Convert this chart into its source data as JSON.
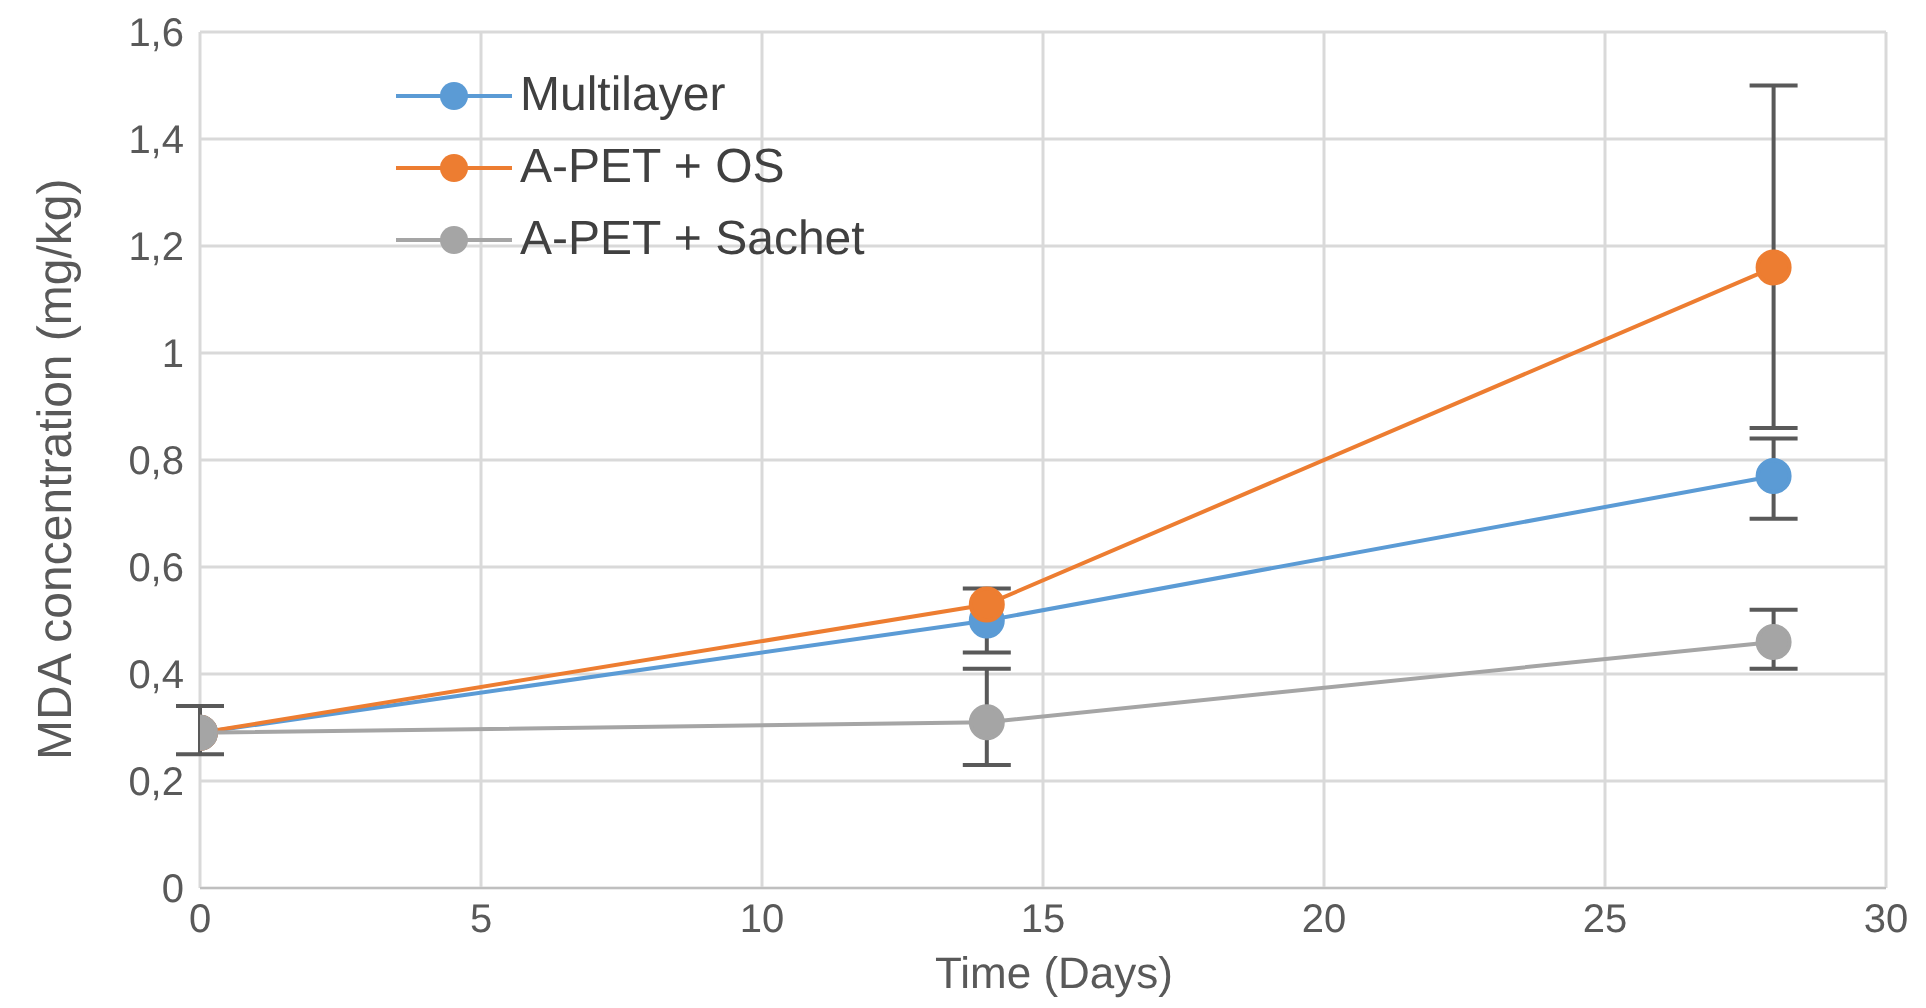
{
  "chart_data": {
    "type": "line",
    "xlabel": "Time (Days)",
    "ylabel": "MDA concentration (mg/kg)",
    "x": [
      0,
      14,
      28
    ],
    "series": [
      {
        "name": "Multilayer",
        "color": "#5b9bd5",
        "values": [
          0.29,
          0.5,
          0.77
        ],
        "errors": [
          null,
          [
            0.44,
            0.56
          ],
          [
            0.69,
            0.84
          ]
        ]
      },
      {
        "name": "A-PET + OS",
        "color": "#ed7d31",
        "values": [
          0.29,
          0.53,
          1.16
        ],
        "errors": [
          null,
          null,
          [
            0.86,
            1.5
          ]
        ]
      },
      {
        "name": "A-PET + Sachet",
        "color": "#a5a5a5",
        "values": [
          0.29,
          0.31,
          0.46
        ],
        "errors": [
          [
            0.25,
            0.34
          ],
          [
            0.23,
            0.41
          ],
          [
            0.41,
            0.52
          ]
        ]
      }
    ],
    "xlim": [
      0,
      30
    ],
    "xticks": [
      0,
      5,
      10,
      15,
      20,
      25,
      30
    ],
    "ylim": [
      0,
      1.6
    ],
    "yticks": [
      0,
      {
        "value": 0.2,
        "label": "0,2"
      },
      {
        "value": 0.4,
        "label": "0,4"
      },
      {
        "value": 0.6,
        "label": "0,6"
      },
      {
        "value": 0.8,
        "label": "0,8"
      },
      1,
      {
        "value": 1.2,
        "label": "1,2"
      },
      {
        "value": 1.4,
        "label": "1,4"
      },
      {
        "value": 1.6,
        "label": "1,6"
      }
    ],
    "grid": true,
    "legend": "top left",
    "marker": "circle",
    "line_style": "solid"
  }
}
